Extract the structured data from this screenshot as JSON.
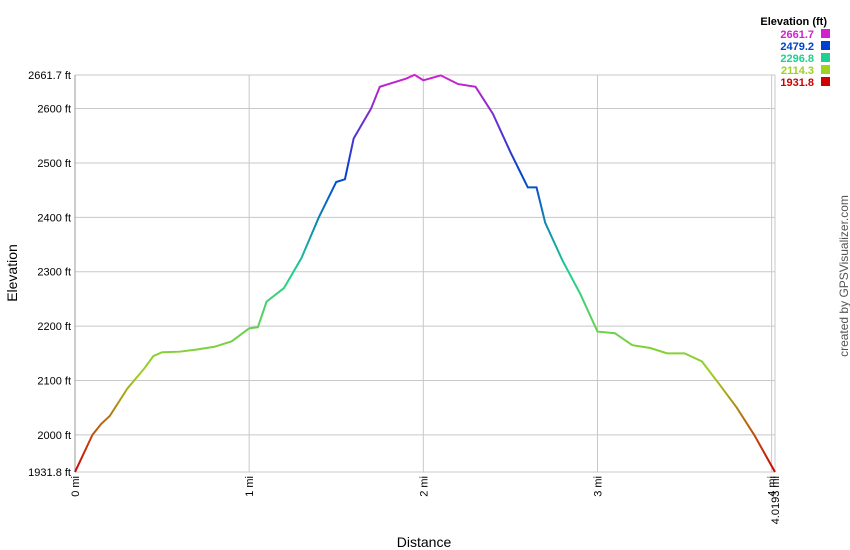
{
  "chart_data": {
    "type": "line",
    "xlabel": "Distance",
    "ylabel": "Elevation",
    "credit": "created by GPSVisualizer.com",
    "legend_title": "Elevation (ft)",
    "legend": [
      {
        "label": "2661.7",
        "value": 2661.7,
        "color": "#d020d0"
      },
      {
        "label": "2479.2",
        "value": 2479.2,
        "color": "#0040d0"
      },
      {
        "label": "2296.8",
        "value": 2296.8,
        "color": "#20d090"
      },
      {
        "label": "2114.3",
        "value": 2114.3,
        "color": "#a0d020"
      },
      {
        "label": "1931.8",
        "value": 1931.8,
        "color": "#d00000"
      }
    ],
    "x": [
      0,
      0.1,
      0.15,
      0.2,
      0.3,
      0.4,
      0.45,
      0.5,
      0.6,
      0.7,
      0.8,
      0.9,
      1.0,
      1.05,
      1.1,
      1.2,
      1.3,
      1.4,
      1.5,
      1.55,
      1.6,
      1.7,
      1.75,
      1.8,
      1.9,
      1.95,
      2.0,
      2.1,
      2.2,
      2.3,
      2.4,
      2.5,
      2.6,
      2.65,
      2.7,
      2.8,
      2.9,
      3.0,
      3.1,
      3.2,
      3.3,
      3.4,
      3.5,
      3.6,
      3.7,
      3.8,
      3.9,
      4.0193
    ],
    "values": [
      1931.8,
      2000,
      2020,
      2035,
      2085,
      2123,
      2145,
      2152,
      2153,
      2157,
      2162,
      2172,
      2196,
      2198,
      2245,
      2270,
      2325,
      2400,
      2465,
      2470,
      2545,
      2600,
      2640,
      2645,
      2655,
      2662,
      2652,
      2661,
      2645,
      2640,
      2590,
      2520,
      2455,
      2455,
      2390,
      2320,
      2260,
      2190,
      2187,
      2165,
      2160,
      2150,
      2150,
      2135,
      2093,
      2050,
      2000,
      1931.8
    ],
    "xlim": [
      0,
      4.0193
    ],
    "ylim": [
      1931.8,
      2661.7
    ],
    "xticks": [
      {
        "value": 0,
        "label": "0 mi"
      },
      {
        "value": 1,
        "label": "1 mi"
      },
      {
        "value": 2,
        "label": "2 mi"
      },
      {
        "value": 3,
        "label": "3 mi"
      },
      {
        "value": 4,
        "label": "4 mi"
      },
      {
        "value": 4.0193,
        "label": "4.0193 mi"
      }
    ],
    "yticks": [
      {
        "value": 1931.8,
        "label": "1931.8 ft"
      },
      {
        "value": 2000,
        "label": "2000 ft"
      },
      {
        "value": 2100,
        "label": "2100 ft"
      },
      {
        "value": 2200,
        "label": "2200 ft"
      },
      {
        "value": 2300,
        "label": "2300 ft"
      },
      {
        "value": 2400,
        "label": "2400 ft"
      },
      {
        "value": 2500,
        "label": "2500 ft"
      },
      {
        "value": 2600,
        "label": "2600 ft"
      },
      {
        "value": 2661.7,
        "label": "2661.7 ft"
      }
    ],
    "grid": true
  }
}
